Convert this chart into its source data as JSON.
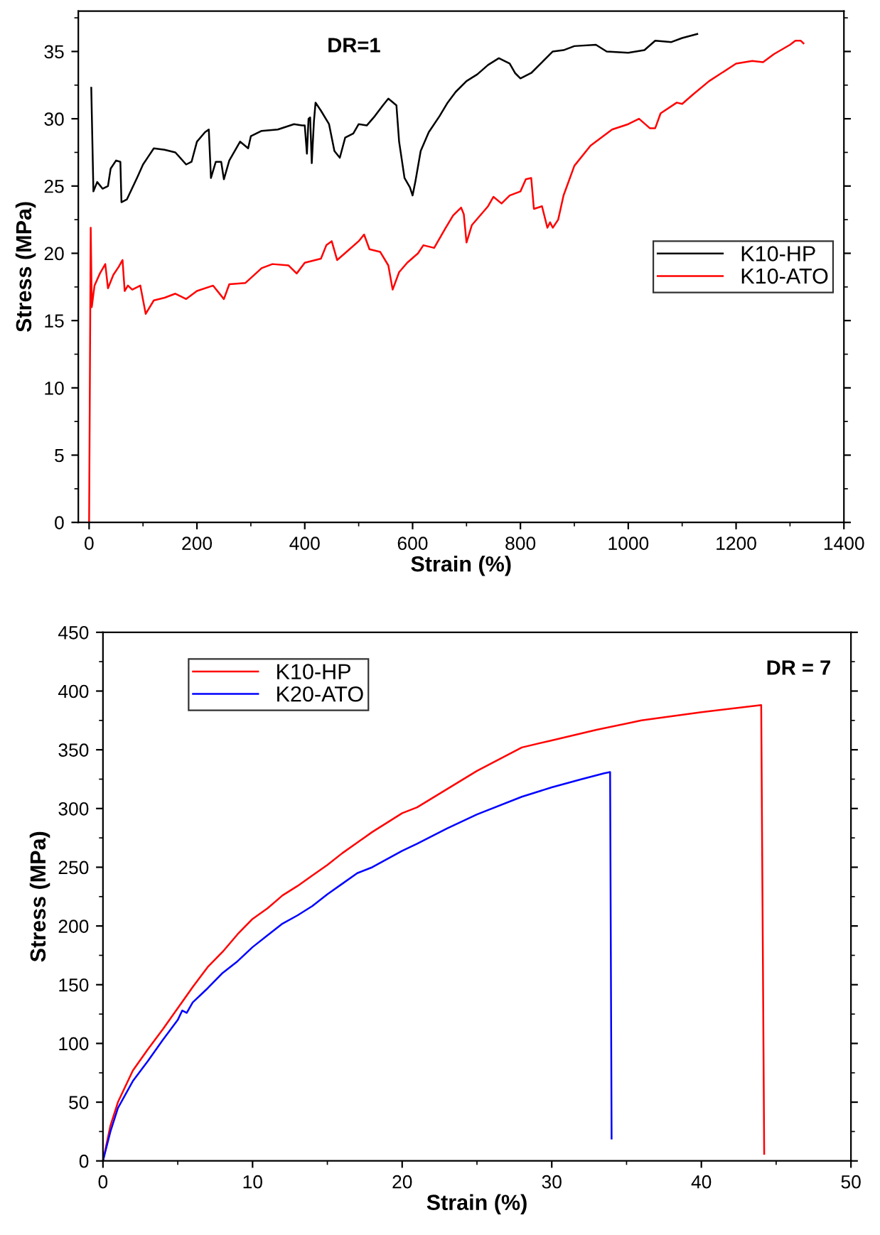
{
  "chart_data": [
    {
      "type": "line",
      "xlabel": "Strain (%)",
      "ylabel": "Stress (MPa)",
      "annotations": [
        "DR=1"
      ],
      "xlim": [
        -20,
        1400
      ],
      "ylim": [
        0,
        38
      ],
      "xticks": [
        0,
        200,
        400,
        600,
        800,
        1000,
        1200,
        1400
      ],
      "yticks": [
        0,
        5,
        10,
        15,
        20,
        25,
        30,
        35
      ],
      "grid": false,
      "legend": "right",
      "marker": "none",
      "line_style": "solid",
      "series": [
        {
          "name": "K10-HP",
          "color": "#000000",
          "x": [
            4,
            8,
            15,
            25,
            35,
            40,
            50,
            58,
            60,
            70,
            90,
            100,
            110,
            120,
            140,
            160,
            180,
            190,
            200,
            215,
            222,
            226,
            235,
            245,
            250,
            260,
            280,
            295,
            300,
            320,
            350,
            380,
            395,
            400,
            404,
            407,
            410,
            413,
            417,
            420,
            430,
            445,
            455,
            465,
            475,
            490,
            500,
            515,
            530,
            545,
            555,
            570,
            575,
            585,
            595,
            600,
            605,
            615,
            630,
            650,
            665,
            680,
            700,
            720,
            740,
            760,
            780,
            790,
            800,
            820,
            840,
            860,
            880,
            900,
            940,
            960,
            1000,
            1030,
            1050,
            1080,
            1100,
            1128
          ],
          "values": [
            32.3,
            24.6,
            25.3,
            24.8,
            25.0,
            26.3,
            26.9,
            26.8,
            23.8,
            24.0,
            25.7,
            26.6,
            27.2,
            27.8,
            27.7,
            27.5,
            26.6,
            26.8,
            28.3,
            29.0,
            29.2,
            25.6,
            26.8,
            26.8,
            25.5,
            26.9,
            28.3,
            27.8,
            28.7,
            29.1,
            29.2,
            29.6,
            29.5,
            29.5,
            27.4,
            30.0,
            30.1,
            26.7,
            29.8,
            31.2,
            30.6,
            29.6,
            27.6,
            27.1,
            28.6,
            28.9,
            29.6,
            29.5,
            30.2,
            31.0,
            31.5,
            31.0,
            28.3,
            25.6,
            24.9,
            24.3,
            25.3,
            27.6,
            29.0,
            30.2,
            31.2,
            32.0,
            32.8,
            33.3,
            34.0,
            34.5,
            34.1,
            33.4,
            33.0,
            33.4,
            34.2,
            35.0,
            35.1,
            35.4,
            35.5,
            35.0,
            34.9,
            35.1,
            35.8,
            35.7,
            36.0,
            36.3
          ]
        },
        {
          "name": "K10-ATO",
          "color": "#ff0000",
          "x": [
            0,
            3,
            5,
            10,
            20,
            30,
            35,
            45,
            55,
            62,
            66,
            72,
            80,
            95,
            105,
            120,
            140,
            160,
            180,
            200,
            230,
            250,
            260,
            290,
            320,
            340,
            370,
            385,
            400,
            430,
            440,
            450,
            460,
            480,
            500,
            510,
            520,
            540,
            555,
            563,
            575,
            590,
            610,
            620,
            640,
            660,
            675,
            690,
            695,
            700,
            710,
            740,
            750,
            765,
            780,
            800,
            810,
            820,
            825,
            840,
            850,
            855,
            860,
            870,
            880,
            900,
            930,
            970,
            1000,
            1020,
            1040,
            1050,
            1060,
            1090,
            1100,
            1120,
            1150,
            1200,
            1230,
            1250,
            1270,
            1300,
            1310,
            1320,
            1325
          ],
          "values": [
            0,
            21.9,
            16.0,
            17.6,
            18.5,
            19.2,
            17.4,
            18.4,
            19.0,
            19.5,
            17.2,
            17.6,
            17.3,
            17.6,
            15.5,
            16.5,
            16.7,
            17.0,
            16.6,
            17.2,
            17.6,
            16.6,
            17.7,
            17.8,
            18.9,
            19.2,
            19.1,
            18.5,
            19.3,
            19.6,
            20.6,
            20.9,
            19.5,
            20.2,
            20.9,
            21.4,
            20.3,
            20.1,
            19.1,
            17.3,
            18.6,
            19.3,
            20.0,
            20.6,
            20.4,
            21.8,
            22.8,
            23.4,
            22.9,
            20.8,
            22.1,
            23.5,
            24.2,
            23.7,
            24.3,
            24.6,
            25.5,
            25.6,
            23.3,
            23.5,
            21.9,
            22.3,
            21.9,
            22.5,
            24.3,
            26.5,
            28.0,
            29.2,
            29.6,
            30.0,
            29.3,
            29.3,
            30.4,
            31.2,
            31.1,
            31.8,
            32.8,
            34.1,
            34.3,
            34.2,
            34.8,
            35.5,
            35.8,
            35.8,
            35.6
          ]
        }
      ]
    },
    {
      "type": "line",
      "xlabel": "Strain (%)",
      "ylabel": "Stress (MPa)",
      "annotations": [
        "DR = 7"
      ],
      "xlim": [
        0,
        50
      ],
      "ylim": [
        0,
        450
      ],
      "xticks": [
        0,
        10,
        20,
        30,
        40,
        50
      ],
      "yticks": [
        0,
        50,
        100,
        150,
        200,
        250,
        300,
        350,
        400,
        450
      ],
      "grid": false,
      "legend": "top left",
      "marker": "none",
      "line_style": "solid",
      "series": [
        {
          "name": "K10-HP",
          "color": "#ff0000",
          "x": [
            0,
            0.5,
            1,
            2,
            3,
            4,
            5,
            6,
            7,
            8,
            9,
            10,
            11,
            12,
            13,
            14,
            15,
            16,
            17,
            18,
            19,
            20,
            21,
            25,
            28,
            30,
            33,
            36,
            40,
            44,
            44.2
          ],
          "values": [
            0,
            30,
            50,
            77,
            95,
            112,
            130,
            148,
            165,
            178,
            193,
            206,
            215,
            226,
            234,
            243,
            252,
            262,
            271,
            280,
            288,
            296,
            301,
            332,
            352,
            358,
            367,
            375,
            382,
            388,
            6
          ]
        },
        {
          "name": "K20-ATO",
          "color": "#0000ff",
          "x": [
            0,
            0.5,
            1,
            2,
            3,
            4,
            5,
            5.3,
            5.6,
            6,
            7,
            8,
            9,
            10,
            11,
            12,
            13,
            14,
            15,
            16,
            17,
            18,
            19,
            20,
            21,
            23,
            25,
            28,
            30,
            32,
            33.5,
            33.9,
            34
          ],
          "values": [
            0,
            25,
            45,
            68,
            85,
            103,
            120,
            128,
            126,
            135,
            147,
            160,
            170,
            182,
            192,
            202,
            209,
            217,
            227,
            236,
            245,
            250,
            257,
            264,
            270,
            283,
            295,
            310,
            318,
            325,
            330,
            331,
            19
          ]
        }
      ]
    }
  ]
}
